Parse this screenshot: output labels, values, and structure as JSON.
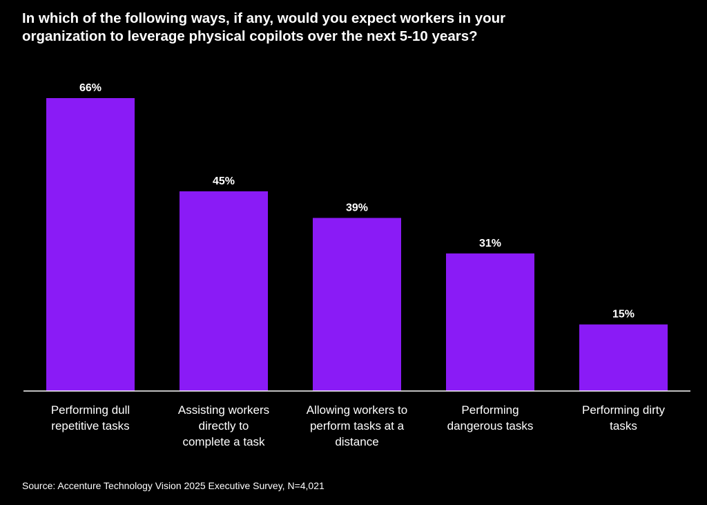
{
  "title": "In which of the following ways, if any, would you expect workers in your\norganization to leverage physical copilots over the next 5-10 years?",
  "source": "Source: Accenture Technology Vision 2025 Executive Survey, N=4,021",
  "colors": {
    "bar": "#8A1BF6",
    "background": "#000000",
    "text": "#FFFFFF",
    "axis": "#FFFFFF"
  },
  "chart_data": {
    "type": "bar",
    "title": "In which of the following ways, if any, would you expect workers in your organization to leverage physical copilots over the next 5-10 years?",
    "categories": [
      [
        "Performing dull",
        "repetitive tasks"
      ],
      [
        "Assisting workers",
        "directly to",
        "complete a task"
      ],
      [
        "Allowing workers to",
        "perform tasks at a",
        "distance"
      ],
      [
        "Performing",
        "dangerous tasks"
      ],
      [
        "Performing dirty",
        "tasks"
      ]
    ],
    "values": [
      66,
      45,
      39,
      31,
      15
    ],
    "value_labels": [
      "66%",
      "45%",
      "39%",
      "31%",
      "15%"
    ],
    "unit": "%",
    "ylim": [
      0,
      66
    ],
    "grid": false,
    "legend": "none"
  }
}
